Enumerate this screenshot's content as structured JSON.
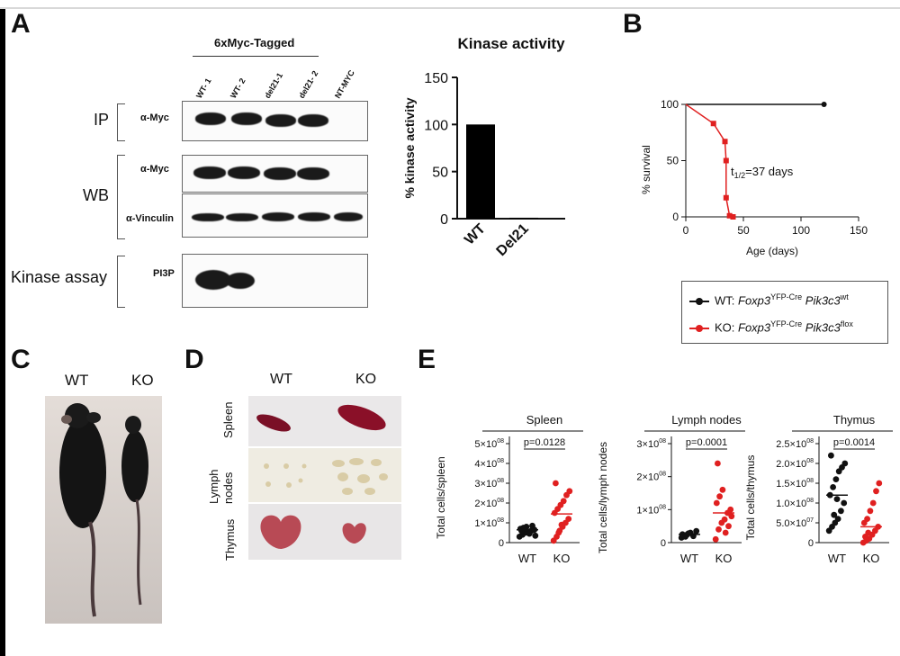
{
  "panels": {
    "A": "A",
    "B": "B",
    "C": "C",
    "D": "D",
    "E": "E"
  },
  "panel_a": {
    "tag_header": "6xMyc-Tagged",
    "lanes": [
      "WT- 1",
      "WT- 2",
      "del21-1",
      "del21- 2",
      "NT-MYC"
    ],
    "ip_label": "IP",
    "wb_label": "WB",
    "kinase_label": "Kinase assay",
    "antibodies": {
      "ip_myc": "α-Myc",
      "wb_myc": "α-Myc",
      "vinculin": "α-Vinculin",
      "pi3p": "PI3P"
    }
  },
  "panel_b": {
    "half_life": "t",
    "half_life_sub": "1/2",
    "half_life_value": "=37 days",
    "legend": [
      {
        "prefix": "WT: ",
        "gene1": "Foxp3",
        "sup1": "YFP-Cre",
        "gene2": " Pik3c3",
        "sup2": "wt",
        "color": "#111111"
      },
      {
        "prefix": "KO: ",
        "gene1": "Foxp3",
        "sup1": "YFP-Cre",
        "gene2": " Pik3c3",
        "sup2": "flox",
        "color": "#e02020"
      }
    ]
  },
  "panel_c": {
    "wt": "WT",
    "ko": "KO"
  },
  "panel_d": {
    "wt": "WT",
    "ko": "KO",
    "rows": [
      "Spleen",
      "Lymph",
      "nodes",
      "Thymus"
    ]
  },
  "chart_data": [
    {
      "type": "bar",
      "title": "Kinase activity",
      "ylabel": "% kinase activity",
      "categories": [
        "WT",
        "Del21"
      ],
      "values": [
        100,
        1
      ],
      "ylim": [
        0,
        150
      ],
      "yticks": [
        "0",
        "50",
        "100",
        "150"
      ],
      "color": "#000000"
    },
    {
      "type": "line",
      "title": "",
      "xlabel": "Age (days)",
      "ylabel": "% survival",
      "xlim": [
        0,
        150
      ],
      "ylim": [
        0,
        100
      ],
      "xticks": [
        "0",
        "50",
        "100",
        "150"
      ],
      "yticks": [
        "0",
        "50",
        "100"
      ],
      "series": [
        {
          "x": [
            0,
            120
          ],
          "y": [
            100,
            100
          ],
          "color": "#111111"
        },
        {
          "x": [
            0,
            24,
            34,
            35,
            35,
            38,
            41
          ],
          "y": [
            100,
            83,
            67,
            50,
            17,
            1,
            0
          ],
          "color": "#e02020"
        }
      ]
    },
    {
      "type": "scatter",
      "title": "Spleen",
      "ylabel": "Total cells/spleen",
      "categories": [
        "WT",
        "KO"
      ],
      "yticks": [
        "0",
        "1×10",
        "2×10",
        "3×10",
        "4×10",
        "5×10"
      ],
      "ytick_exp": "08",
      "pvalue": "p=0.0128",
      "ylim": [
        0,
        500000000
      ],
      "means": [
        65000000,
        145000000
      ],
      "series": [
        {
          "name": "WT",
          "color": "#111111",
          "values": [
            30000000,
            40000000,
            50000000,
            55000000,
            60000000,
            65000000,
            70000000,
            75000000,
            80000000,
            45000000,
            85000000,
            35000000,
            60000000,
            70000000
          ]
        },
        {
          "name": "KO",
          "color": "#e02020",
          "values": [
            10000000,
            30000000,
            60000000,
            80000000,
            100000000,
            120000000,
            150000000,
            170000000,
            190000000,
            210000000,
            240000000,
            260000000,
            300000000,
            50000000,
            90000000
          ]
        }
      ]
    },
    {
      "type": "scatter",
      "title": "Lymph nodes",
      "ylabel": "Total cells/lymph nodes",
      "categories": [
        "WT",
        "KO"
      ],
      "yticks": [
        "0",
        "1×10",
        "2×10",
        "3×10"
      ],
      "ytick_exp": "08",
      "pvalue": "p=0.0001",
      "ylim": [
        0,
        300000000
      ],
      "means": [
        25000000,
        90000000
      ],
      "series": [
        {
          "name": "WT",
          "color": "#111111",
          "values": [
            15000000,
            20000000,
            25000000,
            30000000,
            20000000,
            35000000,
            25000000,
            18000000,
            28000000
          ]
        },
        {
          "name": "KO",
          "color": "#e02020",
          "values": [
            10000000,
            40000000,
            60000000,
            70000000,
            90000000,
            100000000,
            120000000,
            140000000,
            160000000,
            30000000,
            50000000,
            80000000,
            240000000
          ]
        }
      ]
    },
    {
      "type": "scatter",
      "title": "Thymus",
      "ylabel": "Total cells/thymus",
      "categories": [
        "WT",
        "KO"
      ],
      "yticks": [
        "0",
        "5.0×10",
        "1.0×10",
        "1.5×10",
        "2.0×10",
        "2.5×10"
      ],
      "ytick_exp": [
        "",
        "07",
        "08",
        "08",
        "08",
        "08"
      ],
      "pvalue": "p=0.0014",
      "ylim": [
        0,
        250000000
      ],
      "means": [
        120000000,
        40000000
      ],
      "series": [
        {
          "name": "WT",
          "color": "#111111",
          "values": [
            30000000,
            40000000,
            50000000,
            60000000,
            80000000,
            100000000,
            120000000,
            140000000,
            160000000,
            180000000,
            190000000,
            200000000,
            220000000,
            70000000,
            110000000
          ]
        },
        {
          "name": "KO",
          "color": "#e02020",
          "values": [
            0,
            5000000,
            10000000,
            20000000,
            30000000,
            40000000,
            50000000,
            60000000,
            80000000,
            100000000,
            130000000,
            150000000,
            15000000,
            25000000
          ]
        }
      ]
    }
  ]
}
